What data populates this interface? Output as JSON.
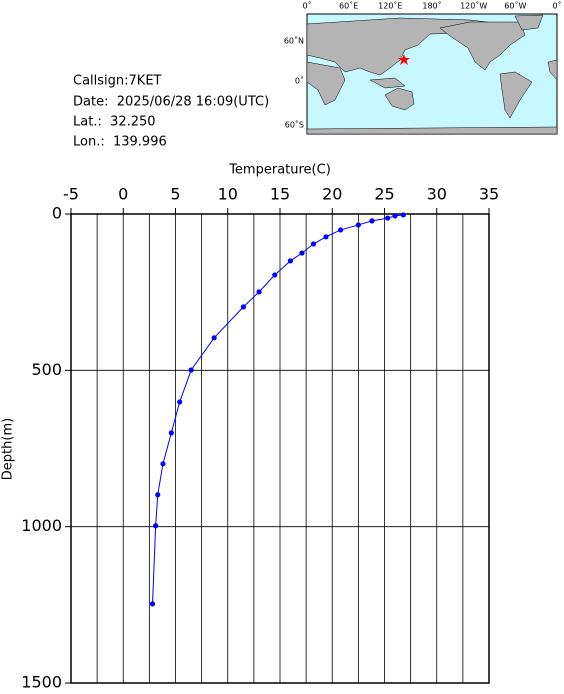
{
  "info": {
    "callsign": "Callsign:7KET",
    "date": "Date:  2025/06/28 16:09(UTC)",
    "lat": "Lat.:  32.250",
    "lon": "Lon.:  139.996"
  },
  "map": {
    "lon_labels": [
      "0˚",
      "60˚E",
      "120˚E",
      "180˚",
      "120˚W",
      "60˚W",
      "0˚"
    ],
    "lat_labels": [
      "60˚N",
      "0˚",
      "60˚S"
    ]
  },
  "chart_data": {
    "type": "line",
    "x_label": "Temperature(C)",
    "y_label": "Depth(m)",
    "x": [
      26.8,
      26.0,
      25.3,
      23.8,
      22.5,
      20.8,
      19.4,
      18.2,
      17.1,
      16.0,
      14.5,
      13.0,
      11.5,
      8.7,
      6.5,
      5.4,
      4.6,
      3.8,
      3.3,
      3.1,
      2.8
    ],
    "series": [
      {
        "color": "#0000ff",
        "values": [
          3,
          6,
          13,
          22,
          35,
          51,
          73,
          96,
          125,
          150,
          195,
          249,
          297,
          396,
          499,
          601,
          700,
          799,
          898,
          997,
          1247
        ]
      }
    ],
    "xlim": [
      -5,
      35
    ],
    "ylim": [
      0,
      1500
    ],
    "y_inverted": true,
    "x_axis_position": "top",
    "xticks": [
      -5,
      0,
      5,
      10,
      15,
      20,
      25,
      30,
      35
    ],
    "yticks": [
      0,
      500,
      1000,
      1500
    ],
    "xgrid": [
      -2.5,
      0,
      2.5,
      5,
      7.5,
      10,
      12.5,
      15,
      17.5,
      20,
      22.5,
      25,
      27.5,
      30,
      32.5
    ],
    "grid": true
  }
}
